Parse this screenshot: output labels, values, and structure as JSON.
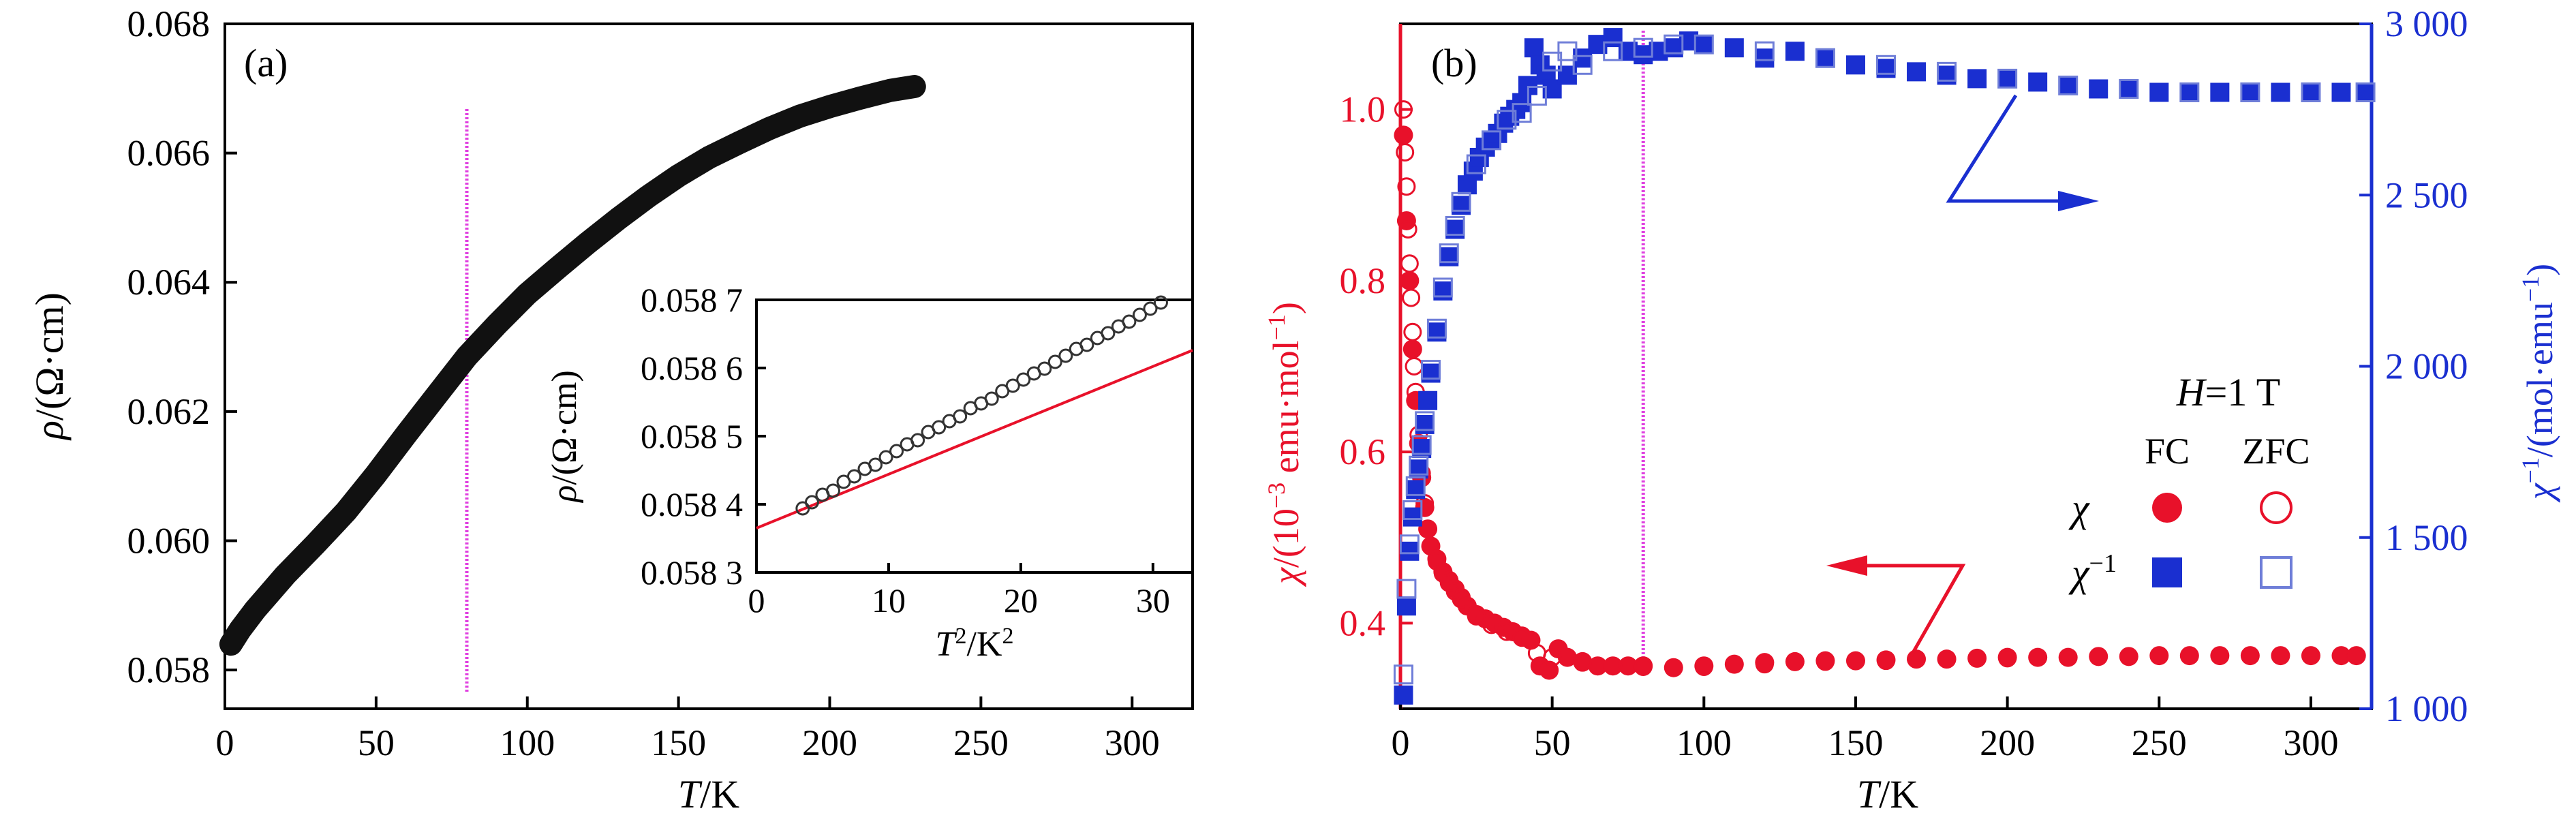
{
  "chart_data": [
    {
      "panel_label": "(a)",
      "type": "scatter",
      "xlabel_italic": "T",
      "xlabel_rest": "/K",
      "ylabel_italic": "ρ",
      "ylabel_rest": "/(Ω·cm)",
      "xlim": [
        0,
        320
      ],
      "ylim": [
        0.0574,
        0.068
      ],
      "x_ticks": [
        0,
        50,
        100,
        150,
        200,
        250,
        300
      ],
      "x_tick_labels": [
        "0",
        "50",
        "100",
        "150",
        "200",
        "250",
        "300"
      ],
      "y_ticks": [
        0.058,
        0.06,
        0.062,
        0.064,
        0.066,
        0.068
      ],
      "y_tick_labels": [
        "0.058",
        "0.060",
        "0.062",
        "0.064",
        "0.066",
        "0.068"
      ],
      "marker_line_x": 80,
      "series": [
        {
          "color": "#111111",
          "curve": [
            [
              2,
              0.0584
            ],
            [
              5,
              0.05862
            ],
            [
              10,
              0.05893
            ],
            [
              20,
              0.05947
            ],
            [
              30,
              0.05995
            ],
            [
              40,
              0.06045
            ],
            [
              50,
              0.06103
            ],
            [
              60,
              0.06165
            ],
            [
              70,
              0.06225
            ],
            [
              80,
              0.06285
            ],
            [
              90,
              0.06335
            ],
            [
              100,
              0.06382
            ],
            [
              110,
              0.06422
            ],
            [
              120,
              0.06461
            ],
            [
              130,
              0.06498
            ],
            [
              140,
              0.06533
            ],
            [
              150,
              0.06565
            ],
            [
              160,
              0.06593
            ],
            [
              170,
              0.06616
            ],
            [
              180,
              0.06638
            ],
            [
              190,
              0.06657
            ],
            [
              200,
              0.06672
            ],
            [
              210,
              0.06685
            ],
            [
              220,
              0.06697
            ],
            [
              228,
              0.06703
            ]
          ]
        }
      ],
      "inset": {
        "type": "scatter",
        "xlabel_italic": "T",
        "xlabel_sup": "2",
        "xlabel_rest": "/K",
        "xlabel_rest_sup": "2",
        "ylabel_italic": "ρ",
        "ylabel_rest": "/(Ω·cm)",
        "xlim": [
          0,
          33
        ],
        "ylim": [
          0.0583,
          0.0587
        ],
        "x_ticks": [
          0,
          10,
          20,
          30
        ],
        "x_tick_labels": [
          "0",
          "10",
          "20",
          "30"
        ],
        "y_ticks": [
          0.0583,
          0.0584,
          0.0585,
          0.0586,
          0.0587
        ],
        "y_tick_labels": [
          "0.058 3",
          "0.058 4",
          "0.058 5",
          "0.058 6",
          "0.058 7"
        ],
        "points": {
          "x": [
            3.5,
            4.2,
            5.0,
            5.8,
            6.6,
            7.4,
            8.2,
            9.0,
            9.8,
            10.6,
            11.4,
            12.2,
            13.0,
            13.8,
            14.6,
            15.4,
            16.2,
            17.0,
            17.8,
            18.6,
            19.4,
            20.2,
            21.0,
            21.8,
            22.6,
            23.4,
            24.2,
            25.0,
            25.8,
            26.6,
            27.4,
            28.2,
            29.0,
            29.8,
            30.6
          ],
          "y": [
            0.058394,
            0.058403,
            0.058414,
            0.05842,
            0.058433,
            0.058441,
            0.058452,
            0.058458,
            0.058469,
            0.058478,
            0.058488,
            0.058494,
            0.058506,
            0.058513,
            0.058522,
            0.058529,
            0.058541,
            0.058548,
            0.058555,
            0.058566,
            0.058574,
            0.058583,
            0.058592,
            0.058599,
            0.058609,
            0.058618,
            0.058628,
            0.058634,
            0.058644,
            0.058651,
            0.058661,
            0.058668,
            0.058678,
            0.058687,
            0.058696
          ]
        },
        "fit": {
          "color": "#e8112a",
          "x": [
            0,
            33
          ],
          "y": [
            0.058365,
            0.058626
          ]
        }
      }
    },
    {
      "panel_label": "(b)",
      "type": "scatter",
      "xlabel_italic": "T",
      "xlabel_rest": "/K",
      "ylabel_left_italic": "χ",
      "ylabel_left_rest": "/(10",
      "ylabel_left_sup": "−3",
      "ylabel_left_tail": " emu·mol",
      "ylabel_left_tail_sup": "−1",
      "ylabel_left_close": ")",
      "ylabel_right_italic": "χ",
      "ylabel_right_sup": "−1",
      "ylabel_right_rest": "/(mol·emu",
      "ylabel_right_rest_sup": "−1",
      "ylabel_right_close": ")",
      "xlim": [
        0,
        320
      ],
      "ylim_left": [
        0.3,
        1.1
      ],
      "ylim_right": [
        1000,
        3000
      ],
      "x_ticks": [
        0,
        50,
        100,
        150,
        200,
        250,
        300
      ],
      "x_tick_labels": [
        "0",
        "50",
        "100",
        "150",
        "200",
        "250",
        "300"
      ],
      "y_left_ticks": [
        0.4,
        0.6,
        0.8,
        1.0
      ],
      "y_left_tick_labels": [
        "0.4",
        "0.6",
        "0.8",
        "1.0"
      ],
      "y_right_ticks": [
        1000,
        1500,
        2000,
        2500,
        3000
      ],
      "y_right_tick_labels": [
        "1 000",
        "1 500",
        "2 000",
        "2 500",
        "3 000"
      ],
      "marker_line_x": 80,
      "colors": {
        "chi": "#e8112a",
        "chi_inv": "#1a2fd0",
        "marker_line": "#e040e0"
      },
      "legend": {
        "title_italic": "H",
        "title_rest": "=1 T",
        "col_fc": "FC",
        "col_zfc": "ZFC",
        "row_chi_italic": "χ",
        "row_chi_inv_italic": "χ",
        "row_chi_inv_sup": "−1",
        "placement": "right-middle"
      },
      "series": [
        {
          "name": "χ FC",
          "axis": "left",
          "marker": "filled-circle",
          "x": [
            1,
            2,
            3,
            4,
            5,
            6,
            7,
            8,
            9,
            10,
            12,
            14,
            16,
            18,
            20,
            22,
            25,
            28,
            31,
            34,
            37,
            40,
            43,
            46,
            49,
            52,
            55,
            60,
            65,
            70,
            75,
            80,
            90,
            100,
            110,
            120,
            130,
            140,
            150,
            160,
            170,
            180,
            190,
            200,
            210,
            220,
            230,
            240,
            250,
            260,
            270,
            280,
            290,
            300,
            310,
            315
          ],
          "y": [
            0.97,
            0.87,
            0.8,
            0.72,
            0.66,
            0.61,
            0.57,
            0.535,
            0.51,
            0.49,
            0.475,
            0.46,
            0.45,
            0.44,
            0.43,
            0.42,
            0.41,
            0.405,
            0.4,
            0.395,
            0.39,
            0.385,
            0.38,
            0.35,
            0.345,
            0.37,
            0.36,
            0.355,
            0.35,
            0.35,
            0.35,
            0.35,
            0.348,
            0.35,
            0.352,
            0.354,
            0.355,
            0.356,
            0.356,
            0.357,
            0.358,
            0.358,
            0.359,
            0.36,
            0.36,
            0.36,
            0.361,
            0.361,
            0.362,
            0.362,
            0.362,
            0.362,
            0.362,
            0.362,
            0.362,
            0.362
          ]
        },
        {
          "name": "χ ZFC",
          "axis": "left",
          "marker": "open-circle",
          "x": [
            1,
            1.5,
            2,
            2.5,
            3,
            3.5,
            4,
            4.5,
            5,
            6,
            7,
            8,
            9,
            10,
            12,
            14,
            16,
            18,
            20,
            25,
            30,
            35,
            40,
            45,
            50,
            60,
            70,
            80,
            100,
            120,
            140,
            160,
            180,
            200,
            220,
            240,
            260,
            280,
            300,
            315
          ],
          "y": [
            1.0,
            0.95,
            0.91,
            0.86,
            0.82,
            0.78,
            0.74,
            0.7,
            0.67,
            0.62,
            0.575,
            0.54,
            0.51,
            0.49,
            0.472,
            0.458,
            0.447,
            0.437,
            0.428,
            0.408,
            0.398,
            0.39,
            0.383,
            0.365,
            0.36,
            0.354,
            0.35,
            0.349,
            0.349,
            0.352,
            0.355,
            0.356,
            0.358,
            0.359,
            0.36,
            0.361,
            0.362,
            0.362,
            0.362,
            0.362
          ]
        },
        {
          "name": "χ⁻¹ FC",
          "axis": "right",
          "marker": "filled-square",
          "x": [
            1,
            2,
            3,
            4,
            5,
            6,
            7,
            8,
            9,
            10,
            12,
            14,
            16,
            18,
            20,
            22,
            24,
            26,
            28,
            30,
            32,
            34,
            36,
            38,
            40,
            42,
            44,
            46,
            48,
            50,
            55,
            60,
            65,
            70,
            75,
            80,
            85,
            90,
            95,
            100,
            110,
            120,
            130,
            140,
            150,
            160,
            170,
            180,
            190,
            200,
            210,
            220,
            230,
            240,
            250,
            260,
            270,
            280,
            290,
            300,
            310,
            318
          ],
          "y": [
            1040,
            1300,
            1460,
            1560,
            1640,
            1700,
            1760,
            1830,
            1900,
            1980,
            2100,
            2220,
            2320,
            2400,
            2470,
            2530,
            2570,
            2610,
            2640,
            2660,
            2680,
            2710,
            2730,
            2750,
            2770,
            2820,
            2930,
            2880,
            2850,
            2810,
            2850,
            2900,
            2940,
            2960,
            2920,
            2910,
            2920,
            2930,
            2950,
            2940,
            2930,
            2900,
            2920,
            2900,
            2880,
            2870,
            2860,
            2850,
            2840,
            2840,
            2830,
            2820,
            2810,
            2810,
            2800,
            2800,
            2800,
            2800,
            2800,
            2800,
            2800,
            2800
          ]
        },
        {
          "name": "χ⁻¹ ZFC",
          "axis": "right",
          "marker": "open-square",
          "x": [
            1,
            2,
            3,
            4,
            5,
            6,
            7,
            8,
            10,
            12,
            14,
            16,
            18,
            20,
            25,
            30,
            35,
            40,
            45,
            50,
            55,
            60,
            70,
            80,
            90,
            100,
            120,
            140,
            160,
            180,
            200,
            220,
            240,
            260,
            280,
            300,
            318
          ],
          "y": [
            1100,
            1350,
            1480,
            1580,
            1650,
            1710,
            1770,
            1840,
            1990,
            2110,
            2230,
            2330,
            2410,
            2480,
            2590,
            2660,
            2720,
            2740,
            2790,
            2890,
            2920,
            2880,
            2920,
            2930,
            2940,
            2940,
            2920,
            2900,
            2880,
            2860,
            2840,
            2820,
            2810,
            2800,
            2800,
            2800,
            2800
          ]
        }
      ]
    }
  ]
}
